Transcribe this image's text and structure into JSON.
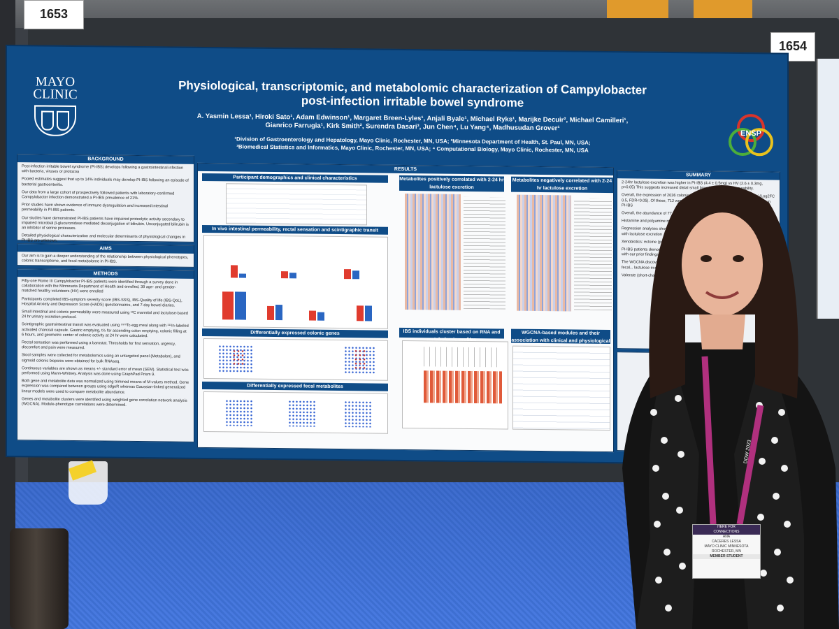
{
  "booth": {
    "left_number": "1653",
    "right_number": "1654"
  },
  "poster": {
    "institution_line1": "MAYO",
    "institution_line2": "CLINIC",
    "title_line1": "Physiological, transcriptomic, and metabolomic characterization of Campylobacter",
    "title_line2": "post-infection irritable bowel syndrome",
    "authors_line1": "A. Yasmin Lessa¹, Hiroki Sato¹, Adam Edwinson¹, Margaret Breen-Lyles¹, Anjali Byale¹, Michael Ryks¹, Marijke Decuir², Michael Camilleri¹,",
    "authors_line2": "Gianrico Farrugia¹, Kirk Smith², Surendra Dasari³, Jun Chen⁴, Lu Yang⁴, Madhusudan Grover¹",
    "affil_line1": "¹Division of Gastroenterology and Hepatology, Mayo Clinic, Rochester, MN, USA; ²Minnesota Department of Health, St. Paul, MN, USA;",
    "affil_line2": "³Biomedical Statistics and Informatics, Mayo Clinic, Rochester, MN, USA; ⁴ Computational Biology, Mayo Clinic, Rochester, MN, USA",
    "badge_logo": "ENSP",
    "sections": {
      "background": {
        "heading": "BACKGROUND",
        "bullets": [
          "Post-infection irritable bowel syndrome (PI-IBS) develops following a gastrointestinal infection with bacteria, viruses or protozoa",
          "Pooled estimates suggest that up to 14% individuals may develop PI-IBS following an episode of bacterial gastroenteritis.",
          "Our data from a large cohort of prospectively followed patients with laboratory-confirmed Campylobacter infection demonstrated a PI-IBS prevalence of 21%.",
          "Prior studies have shown evidence of immune dysregulation and increased intestinal permeability in PI-IBS patients.",
          "Our studies have demonstrated PI-IBS patients have impaired proteolytic activity secondary to impaired microbial β-glucuronidase mediated deconjugation of bilirubin. Unconjugated bilirubin is an inhibitor of serine proteases.",
          "Detailed physiological characterization and molecular determinants of physiological changes in PI-IBS are unknown."
        ]
      },
      "aims": {
        "heading": "AIMS",
        "text": "Our aim is to gain a deeper understanding of the relationship between physiological phenotypes, colonic transcriptome, and fecal metabolome in PI-IBS."
      },
      "methods": {
        "heading": "METHODS",
        "bullets": [
          "Fifty-one Rome III Campylobacter PI-IBS patients were identified through a survey done in collaboration with the Minnesota Department of Health and enrolled, 39 age- and gender-matched healthy volunteers (HV) were enrolled",
          "Participants completed IBS-symptom severity score (IBS-SSS), IBS-Quality of life (IBS-QoL), Hospital Anxiety and Depression Score (HADS) questionnaires, and 7-day bowel diaries.",
          "Small intestinal and colonic permeability were measured using ¹³C mannitol and lactulose-based 24 hr urinary excretion protocol.",
          "Scintigraphic gastrointestinal transit was evaluated using ⁹⁹ᵐTc-egg meal along with ¹¹¹In-labeled activated charcoal capsule. Gastric emptying, t½ for ascending colon emptying, colonic filling at 6 hours, and geometric center of colonic activity at 24 hr were calculated.",
          "Rectal sensation was performed using a barostat. Thresholds for first sensation, urgency, discomfort and pain were measured.",
          "Stool samples were collected for metabolomics using an untargeted panel (Metabolon), and sigmoid colonic biopsies were obtained for bulk RNAseq.",
          "Continuous variables are shown as means +/- standard error of mean (SEM). Statistical test was performed using Mann-Whitney. Analysis was done using GraphPad Prism 9.",
          "Both gene and metabolite data was normalized using trimmed means of M-values method. Gene expression was compared between groups using edgeR whereas Gaussian-linked generalized linear models were used to compare metabolite abundance.",
          "Genes and metabolite clusters were identified using weighted gene correlation network analysis (WGCNA). Module-phenotype correlations were determined."
        ]
      },
      "results": {
        "heading": "RESULTS",
        "demographics_heading": "Participant demographics and clinical characteristics",
        "invivo_heading": "In vivo intestinal permeability, rectal sensation and scintigraphic transit",
        "deg_heading": "Differentially expressed colonic genes",
        "dem_heading": "Differentially expressed fecal metabolites",
        "pos_heading": "Metabolites positively correlated with 2-24 hr lactulose excretion",
        "neg_heading": "Metabolites negatively correlated with 2-24 hr lactulose excretion",
        "cluster_heading": "IBS individuals cluster based on RNA and metabolomic profiles",
        "wgcna_heading": "WGCNA-based modules and their association with clinical and physiological characteristics"
      },
      "summary": {
        "heading": "SUMMARY",
        "bullets": [
          "2-24hr lactulose excretion was higher in PI-IBS (4.4 ± 0.5mg) vs HV (2.6 ± 0.3mg, p<0.05) This suggests increased distal small bowel and colonic permeability.",
          "Overall, the expression of 2036 colonic mucosal genes differed in PI-IBS vs HV (Log2FC 0.5, FDR<0.05). Of these, 712 were overexpressed and 1324 were underexpressed in PI-IBS",
          "Overall, the abundance of 77 metabolites differed in PI-IBS vs HV (p<0.05)",
          "Histamine and polyamine metabolism: higher abundance of N-acetyl histamine",
          "Regression analyses showed histamine, acetylputrescine (p=0.07) positively correlated with lactulose excretion",
          "Xenobiotics: ectoine (p=0.03)",
          "PI-IBS patients demonstrated decreased gene expression and metabolites consistent with our prior findings",
          "The WGCNA discovered 33 unique gene modules; module positively correlated with fecal... lactulose excretion",
          "Valerate (short-chain fatty acid) constituted top metabolites"
        ]
      }
    }
  },
  "attendee_badge": {
    "header_line1": "HERE FOR",
    "header_line2": "CONNECTIONS",
    "first_name": "ANA",
    "last_name": "CACERES LESSA",
    "org": "MAYO CLINIC MINNESOTA",
    "city": "ROCHESTER, MN",
    "type": "MEMBER STUDENT"
  },
  "lanyard_text": "DDW 2023"
}
